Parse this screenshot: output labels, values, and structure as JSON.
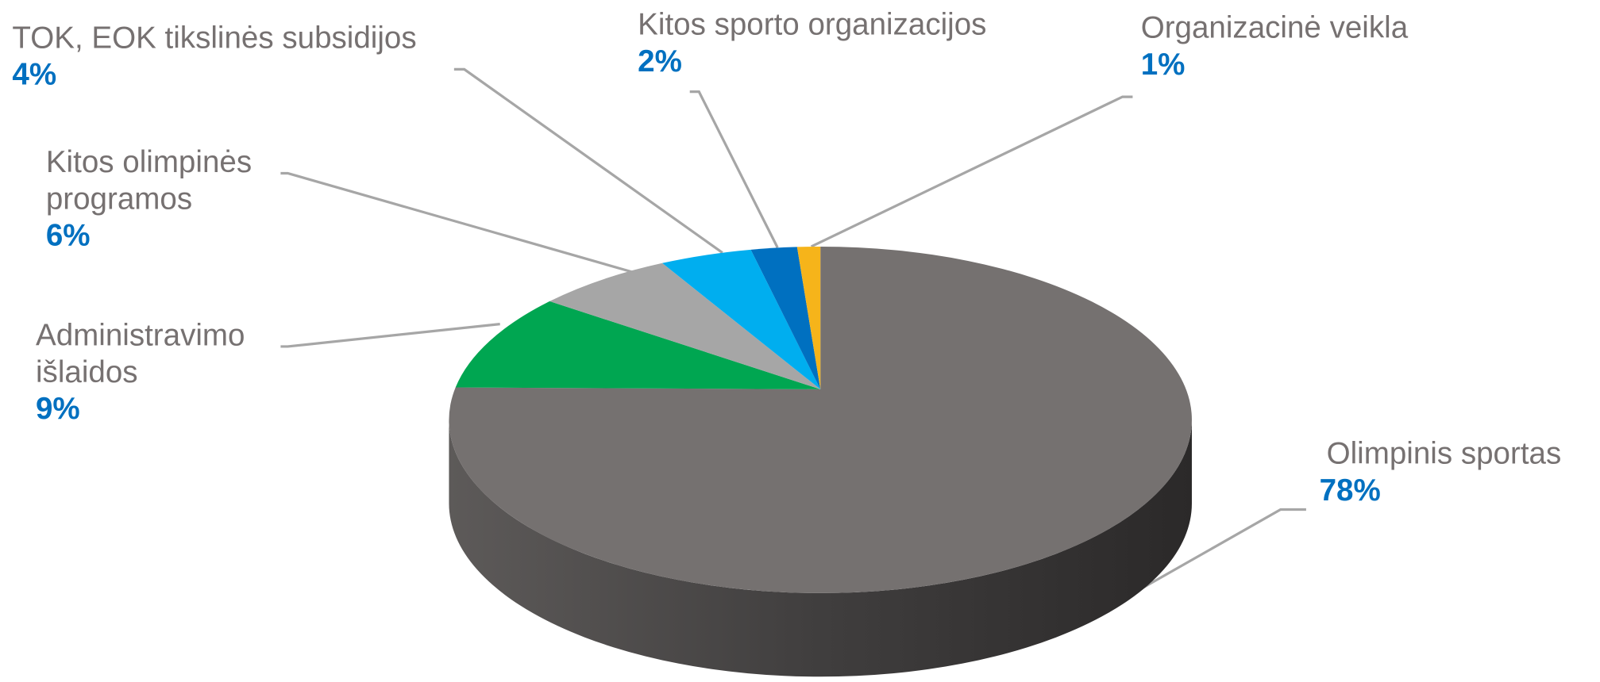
{
  "chart_data": {
    "type": "pie",
    "categories": [
      "Olimpinis sportas",
      "Administravimo išlaidos",
      "Kitos olimpinės programos",
      "TOK, EOK tikslinės subsidijos",
      "Kitos sporto organizacijos",
      "Organizacinė veikla"
    ],
    "values": [
      78,
      9,
      6,
      4,
      2,
      1
    ],
    "value_labels": [
      "78%",
      "9%",
      "6%",
      "4%",
      "2%",
      "1%"
    ],
    "colors": [
      "#757170",
      "#00a651",
      "#a6a6a6",
      "#00aeef",
      "#0070c0",
      "#f6b41a"
    ]
  }
}
